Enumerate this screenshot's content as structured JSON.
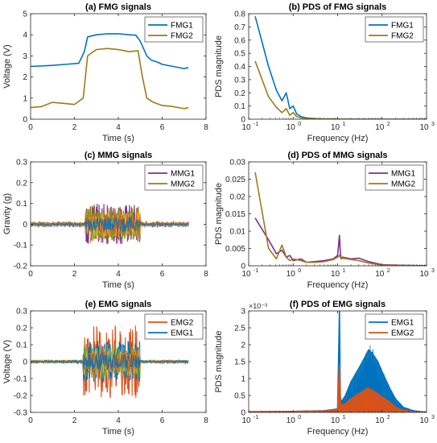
{
  "colors": {
    "blue": "#0072BD",
    "orange": "#D95319",
    "gold": "#EDB120",
    "purple": "#7E2F8E",
    "green": "#77AC30",
    "olive": "#9E7A1A",
    "axis": "#262626",
    "grid": "#e6e6e6"
  },
  "chart_data": [
    {
      "id": "fmg",
      "type": "line",
      "title": "(a) FMG signals",
      "xlabel": "Time (s)",
      "ylabel": "Voltage (V)",
      "xlim": [
        0,
        8
      ],
      "ylim": [
        0,
        5
      ],
      "xticks": [
        0,
        2,
        4,
        6,
        8
      ],
      "yticks": [
        0,
        1,
        2,
        3,
        4,
        5
      ],
      "legend": "top-right",
      "series": [
        {
          "name": "FMG1",
          "x": [
            0,
            1,
            1.6,
            2.2,
            2.45,
            2.6,
            3,
            3.5,
            4,
            4.5,
            4.8,
            5,
            5.3,
            5.5,
            5.8,
            6,
            6.5,
            7,
            7.2
          ],
          "values": [
            2.5,
            2.55,
            2.6,
            2.65,
            3.2,
            3.9,
            4.0,
            4.05,
            4.05,
            4.0,
            3.98,
            3.7,
            3.0,
            2.8,
            2.7,
            2.6,
            2.5,
            2.4,
            2.45
          ]
        },
        {
          "name": "FMG2",
          "x": [
            0,
            0.5,
            1,
            1.5,
            2,
            2.4,
            2.6,
            3,
            3.5,
            4,
            4.5,
            4.9,
            5.1,
            5.3,
            5.6,
            6,
            6.5,
            7,
            7.2
          ],
          "values": [
            0.55,
            0.6,
            0.8,
            0.75,
            0.7,
            1.0,
            3.0,
            3.3,
            3.35,
            3.3,
            3.2,
            3.25,
            2.0,
            1.0,
            0.8,
            0.65,
            0.6,
            0.5,
            0.55
          ]
        }
      ]
    },
    {
      "id": "pds-fmg",
      "type": "line",
      "title": "(b) PDS of FMG signals",
      "xlabel": "Frequency (Hz)",
      "ylabel": "PDS magnitude",
      "xscale": "log",
      "xlim": [
        0.1,
        1000
      ],
      "ylim": [
        0,
        0.8
      ],
      "xticks": [
        0.1,
        1,
        10,
        100,
        1000
      ],
      "yticks": [
        0,
        0.1,
        0.2,
        0.3,
        0.4,
        0.5,
        0.6,
        0.7,
        0.8
      ],
      "legend": "top-right",
      "series": [
        {
          "name": "FMG1",
          "x": [
            0.14,
            0.28,
            0.42,
            0.56,
            0.7,
            0.84,
            1.0,
            1.2,
            1.5,
            2,
            3,
            5,
            10,
            100,
            1000
          ],
          "values": [
            0.78,
            0.4,
            0.22,
            0.14,
            0.2,
            0.08,
            0.1,
            0.04,
            0.02,
            0.01,
            0.005,
            0.002,
            0.001,
            0.0,
            0.0
          ]
        },
        {
          "name": "FMG2",
          "x": [
            0.14,
            0.28,
            0.42,
            0.56,
            0.7,
            0.84,
            1.0,
            1.2,
            1.5,
            2,
            3,
            5,
            10,
            100,
            1000
          ],
          "values": [
            0.44,
            0.17,
            0.09,
            0.05,
            0.08,
            0.03,
            0.05,
            0.02,
            0.01,
            0.005,
            0.003,
            0.001,
            0.0,
            0.0,
            0.0
          ]
        }
      ]
    },
    {
      "id": "mmg",
      "type": "line",
      "title": "(c) MMG signals",
      "xlabel": "Time (s)",
      "ylabel": "Gravity (g)",
      "xlim": [
        0,
        8
      ],
      "ylim": [
        -0.2,
        0.3
      ],
      "xticks": [
        0,
        2,
        4,
        6,
        8
      ],
      "yticks": [
        -0.2,
        -0.1,
        0,
        0.1,
        0.2,
        0.3
      ],
      "legend": "top-right",
      "series": [
        {
          "name": "MMG1",
          "x_range": [
            0,
            7.2
          ],
          "baseline_amplitude": 0.012,
          "active_window": [
            2.5,
            5.0
          ],
          "active_amplitude": 0.1
        },
        {
          "name": "MMG2",
          "x_range": [
            0,
            7.2
          ],
          "baseline_amplitude": 0.01,
          "active_window": [
            2.5,
            5.0
          ],
          "active_amplitude": 0.09
        }
      ]
    },
    {
      "id": "pds-mmg",
      "type": "line",
      "title": "(d) PDS of MMG signals",
      "xlabel": "Frequency (Hz)",
      "ylabel": "PDS magnitude",
      "xscale": "log",
      "xlim": [
        0.1,
        1000
      ],
      "ylim": [
        0,
        0.03
      ],
      "xticks": [
        0.1,
        1,
        10,
        100,
        1000
      ],
      "yticks": [
        0,
        0.005,
        0.01,
        0.015,
        0.02,
        0.025,
        0.03
      ],
      "legend": "top-right",
      "series": [
        {
          "name": "MMG1",
          "x": [
            0.14,
            0.28,
            0.42,
            0.56,
            0.7,
            0.84,
            1,
            1.5,
            2,
            3,
            5,
            8,
            10,
            11,
            11.5,
            12,
            13,
            20,
            30,
            50,
            100,
            1000
          ],
          "values": [
            0.0138,
            0.0075,
            0.0035,
            0.0045,
            0.0025,
            0.003,
            0.0015,
            0.002,
            0.001,
            0.0012,
            0.0015,
            0.002,
            0.003,
            0.0088,
            0.004,
            0.002,
            0.0025,
            0.002,
            0.0022,
            0.0012,
            0.0003,
            0.0
          ]
        },
        {
          "name": "MMG2",
          "x": [
            0.14,
            0.28,
            0.42,
            0.56,
            0.7,
            0.84,
            1,
            1.5,
            2,
            3,
            5,
            8,
            10,
            11,
            12,
            13,
            20,
            30,
            50,
            100,
            1000
          ],
          "values": [
            0.027,
            0.005,
            0.002,
            0.006,
            0.0025,
            0.0015,
            0.002,
            0.0015,
            0.001,
            0.001,
            0.0012,
            0.0018,
            0.0025,
            0.003,
            0.002,
            0.0022,
            0.0018,
            0.0015,
            0.0008,
            0.0002,
            0.0
          ]
        }
      ]
    },
    {
      "id": "emg",
      "type": "line",
      "title": "(e) EMG signals",
      "xlabel": "Time (s)",
      "ylabel": "Voltage (V)",
      "xlim": [
        0,
        8
      ],
      "ylim": [
        -0.3,
        0.3
      ],
      "xticks": [
        0,
        2,
        4,
        6,
        8
      ],
      "yticks": [
        -0.3,
        -0.2,
        -0.1,
        0,
        0.1,
        0.2,
        0.3
      ],
      "legend": "top-right",
      "series": [
        {
          "name": "EMG2",
          "x_range": [
            0,
            7.2
          ],
          "baseline_amplitude": 0.008,
          "active_window": [
            2.4,
            5.0
          ],
          "active_amplitude": 0.22
        },
        {
          "name": "EMG1",
          "x_range": [
            0,
            7.2
          ],
          "baseline_amplitude": 0.008,
          "active_window": [
            2.4,
            5.0
          ],
          "active_amplitude": 0.12
        }
      ]
    },
    {
      "id": "pds-emg",
      "type": "area",
      "title": "(f) PDS of EMG signals",
      "xlabel": "Frequency (Hz)",
      "ylabel": "PDS magnitude",
      "exponent_label": "×10⁻³",
      "xscale": "log",
      "xlim": [
        0.1,
        1000
      ],
      "ylim": [
        0,
        3
      ],
      "xticks": [
        0.1,
        1,
        10,
        100,
        1000
      ],
      "yticks": [
        0,
        0.5,
        1,
        1.5,
        2,
        2.5,
        3
      ],
      "legend": "top-right",
      "series": [
        {
          "name": "EMG1",
          "x": [
            0.1,
            1,
            5,
            10,
            11,
            11.5,
            12,
            15,
            20,
            30,
            40,
            50,
            60,
            80,
            100,
            150,
            200,
            300,
            500,
            1000
          ],
          "values": [
            0.02,
            0.03,
            0.05,
            0.1,
            3.0,
            0.5,
            0.3,
            0.5,
            0.9,
            1.3,
            1.6,
            1.85,
            1.75,
            1.5,
            1.2,
            0.7,
            0.4,
            0.15,
            0.05,
            0.0
          ]
        },
        {
          "name": "EMG2",
          "x": [
            0.1,
            1,
            5,
            10,
            11,
            11.5,
            12,
            15,
            20,
            30,
            40,
            50,
            60,
            80,
            100,
            150,
            200,
            300,
            500,
            1000
          ],
          "values": [
            0.02,
            0.03,
            0.04,
            0.08,
            1.4,
            0.3,
            0.2,
            0.25,
            0.4,
            0.55,
            0.65,
            0.7,
            0.65,
            0.55,
            0.45,
            0.3,
            0.15,
            0.06,
            0.02,
            0.0
          ]
        }
      ]
    }
  ]
}
